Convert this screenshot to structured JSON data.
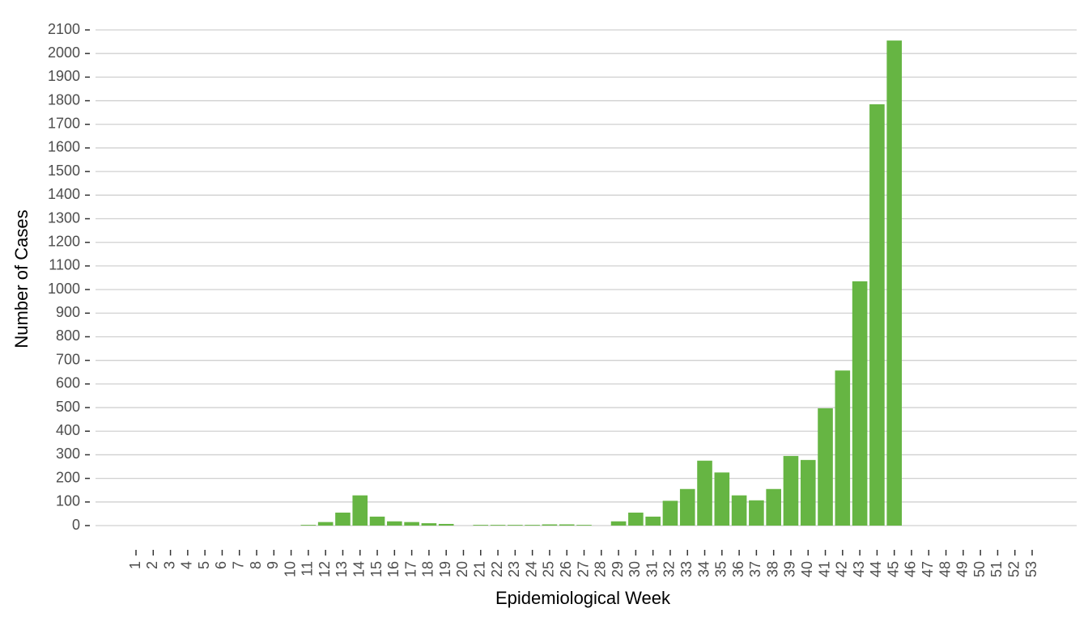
{
  "chart_data": {
    "type": "bar",
    "x_label": "Epidemiological Week",
    "y_label": "Number of Cases",
    "categories": [
      "1",
      "2",
      "3",
      "4",
      "5",
      "6",
      "7",
      "8",
      "9",
      "10",
      "11",
      "12",
      "13",
      "14",
      "15",
      "16",
      "17",
      "18",
      "19",
      "20",
      "21",
      "22",
      "23",
      "24",
      "25",
      "26",
      "27",
      "28",
      "29",
      "30",
      "31",
      "32",
      "33",
      "34",
      "35",
      "36",
      "37",
      "38",
      "39",
      "40",
      "41",
      "42",
      "43",
      "44",
      "45",
      "46",
      "47",
      "48",
      "49",
      "50",
      "51",
      "52",
      "53"
    ],
    "values": [
      0,
      0,
      0,
      0,
      0,
      0,
      0,
      0,
      0,
      0,
      3,
      15,
      55,
      128,
      38,
      18,
      15,
      10,
      7,
      0,
      3,
      3,
      3,
      3,
      5,
      5,
      3,
      0,
      18,
      55,
      38,
      105,
      155,
      275,
      225,
      128,
      107,
      155,
      295,
      278,
      497,
      657,
      1035,
      1785,
      2055,
      0,
      0,
      0,
      0,
      0,
      0,
      0,
      0
    ],
    "color": "#66b543",
    "ylim": [
      0,
      2100
    ],
    "yticks": [
      0,
      100,
      200,
      300,
      400,
      500,
      600,
      700,
      800,
      900,
      1000,
      1100,
      1200,
      1300,
      1400,
      1500,
      1600,
      1700,
      1800,
      1900,
      2000,
      2100
    ],
    "grid": true
  }
}
